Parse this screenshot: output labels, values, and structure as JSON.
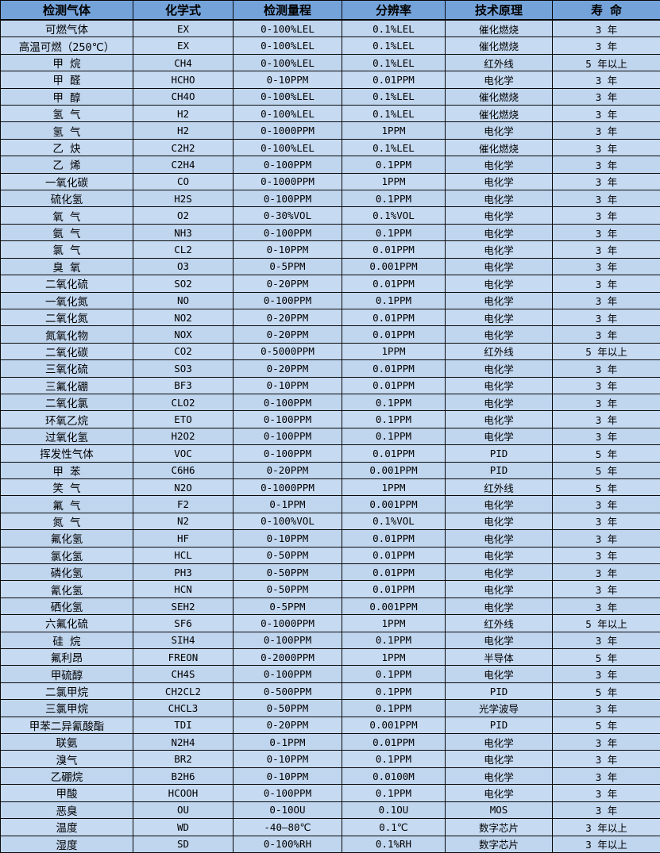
{
  "table": {
    "title": "gas-sensor-specifications",
    "columns": [
      {
        "key": "gas",
        "label": "检测气体"
      },
      {
        "key": "formula",
        "label": "化学式"
      },
      {
        "key": "range",
        "label": "检测量程"
      },
      {
        "key": "resolution",
        "label": "分辨率"
      },
      {
        "key": "principle",
        "label": "技术原理"
      },
      {
        "key": "lifespan",
        "label": "寿 命"
      }
    ],
    "rows": [
      [
        "可燃气体",
        "EX",
        "0-100%LEL",
        "0.1%LEL",
        "催化燃烧",
        "3 年"
      ],
      [
        "高温可燃（250℃）",
        "EX",
        "0-100%LEL",
        "0.1%LEL",
        "催化燃烧",
        "3 年"
      ],
      [
        "甲 烷",
        "CH4",
        "0-100%LEL",
        "0.1%LEL",
        "红外线",
        "5 年以上"
      ],
      [
        "甲 醛",
        "HCHO",
        "0-10PPM",
        "0.01PPM",
        "电化学",
        "3 年"
      ],
      [
        "甲 醇",
        "CH4O",
        "0-100%LEL",
        "0.1%LEL",
        "催化燃烧",
        "3 年"
      ],
      [
        "氢 气",
        "H2",
        "0-100%LEL",
        "0.1%LEL",
        "催化燃烧",
        "3 年"
      ],
      [
        "氢 气",
        "H2",
        "0-1000PPM",
        "1PPM",
        "电化学",
        "3 年"
      ],
      [
        "乙 炔",
        "C2H2",
        "0-100%LEL",
        "0.1%LEL",
        "催化燃烧",
        "3 年"
      ],
      [
        "乙 烯",
        "C2H4",
        "0-100PPM",
        "0.1PPM",
        "电化学",
        "3 年"
      ],
      [
        "一氧化碳",
        "CO",
        "0-1000PPM",
        "1PPM",
        "电化学",
        "3 年"
      ],
      [
        "硫化氢",
        "H2S",
        "0-100PPM",
        "0.1PPM",
        "电化学",
        "3 年"
      ],
      [
        "氧 气",
        "O2",
        "0-30%VOL",
        "0.1%VOL",
        "电化学",
        "3 年"
      ],
      [
        "氨 气",
        "NH3",
        "0-100PPM",
        "0.1PPM",
        "电化学",
        "3 年"
      ],
      [
        "氯 气",
        "CL2",
        "0-10PPM",
        "0.01PPM",
        "电化学",
        "3 年"
      ],
      [
        "臭 氧",
        "O3",
        "0-5PPM",
        "0.001PPM",
        "电化学",
        "3 年"
      ],
      [
        "二氧化硫",
        "SO2",
        "0-20PPM",
        "0.01PPM",
        "电化学",
        "3 年"
      ],
      [
        "一氧化氮",
        "NO",
        "0-100PPM",
        "0.1PPM",
        "电化学",
        "3 年"
      ],
      [
        "二氧化氮",
        "NO2",
        "0-20PPM",
        "0.01PPM",
        "电化学",
        "3 年"
      ],
      [
        "氮氧化物",
        "NOX",
        "0-20PPM",
        "0.01PPM",
        "电化学",
        "3 年"
      ],
      [
        "二氧化碳",
        "CO2",
        "0-5000PPM",
        "1PPM",
        "红外线",
        "5 年以上"
      ],
      [
        "三氧化硫",
        "SO3",
        "0-20PPM",
        "0.01PPM",
        "电化学",
        "3 年"
      ],
      [
        "三氟化硼",
        "BF3",
        "0-10PPM",
        "0.01PPM",
        "电化学",
        "3 年"
      ],
      [
        "二氧化氯",
        "CLO2",
        "0-100PPM",
        "0.1PPM",
        "电化学",
        "3 年"
      ],
      [
        "环氧乙烷",
        "ETO",
        "0-100PPM",
        "0.1PPM",
        "电化学",
        "3 年"
      ],
      [
        "过氧化氢",
        "H2O2",
        "0-100PPM",
        "0.1PPM",
        "电化学",
        "3 年"
      ],
      [
        "挥发性气体",
        "VOC",
        "0-100PPM",
        "0.01PPM",
        "PID",
        "5 年"
      ],
      [
        "甲 苯",
        "C6H6",
        "0-20PPM",
        "0.001PPM",
        "PID",
        "5 年"
      ],
      [
        "笑 气",
        "N2O",
        "0-1000PPM",
        "1PPM",
        "红外线",
        "5 年"
      ],
      [
        "氟 气",
        "F2",
        "0-1PPM",
        "0.001PPM",
        "电化学",
        "3 年"
      ],
      [
        "氮 气",
        "N2",
        "0-100%VOL",
        "0.1%VOL",
        "电化学",
        "3 年"
      ],
      [
        "氟化氢",
        "HF",
        "0-10PPM",
        "0.01PPM",
        "电化学",
        "3 年"
      ],
      [
        "氯化氢",
        "HCL",
        "0-50PPM",
        "0.01PPM",
        "电化学",
        "3 年"
      ],
      [
        "磷化氢",
        "PH3",
        "0-50PPM",
        "0.01PPM",
        "电化学",
        "3 年"
      ],
      [
        "氰化氢",
        "HCN",
        "0-50PPM",
        "0.01PPM",
        "电化学",
        "3 年"
      ],
      [
        "硒化氢",
        "SEH2",
        "0-5PPM",
        "0.001PPM",
        "电化学",
        "3 年"
      ],
      [
        "六氟化硫",
        "SF6",
        "0-1000PPM",
        "1PPM",
        "红外线",
        "5 年以上"
      ],
      [
        "硅 烷",
        "SIH4",
        "0-100PPM",
        "0.1PPM",
        "电化学",
        "3 年"
      ],
      [
        "氟利昂",
        "FREON",
        "0-2000PPM",
        "1PPM",
        "半导体",
        "5 年"
      ],
      [
        "甲硫醇",
        "CH4S",
        "0-100PPM",
        "0.1PPM",
        "电化学",
        "3 年"
      ],
      [
        "二氯甲烷",
        "CH2CL2",
        "0-500PPM",
        "0.1PPM",
        "PID",
        "5 年"
      ],
      [
        "三氯甲烷",
        "CHCL3",
        "0-50PPM",
        "0.1PPM",
        "光学波导",
        "3 年"
      ],
      [
        "甲苯二异氰酸酯",
        "TDI",
        "0-20PPM",
        "0.001PPM",
        "PID",
        "5 年"
      ],
      [
        "联氨",
        "N2H4",
        "0-1PPM",
        "0.01PPM",
        "电化学",
        "3 年"
      ],
      [
        "溴气",
        "BR2",
        "0-10PPM",
        "0.1PPM",
        "电化学",
        "3 年"
      ],
      [
        "乙硼烷",
        "B2H6",
        "0-10PPM",
        "0.0100M",
        "电化学",
        "3 年"
      ],
      [
        "甲酸",
        "HCOOH",
        "0-100PPM",
        "0.1PPM",
        "电化学",
        "3 年"
      ],
      [
        "恶臭",
        "OU",
        "0-10OU",
        "0.1OU",
        "MOS",
        "3 年"
      ],
      [
        "温度",
        "WD",
        "-40—80℃",
        "0.1℃",
        "数字芯片",
        "3 年以上"
      ],
      [
        "湿度",
        "SD",
        "0-100%RH",
        "0.1%RH",
        "数字芯片",
        "3 年以上"
      ]
    ]
  },
  "colors": {
    "header_bg": "#74a3da",
    "row_bg": "#c6daf2",
    "row_bg_alt": "#c0d5ee",
    "grid_line": "#0a0a0a",
    "text": "#000000"
  }
}
